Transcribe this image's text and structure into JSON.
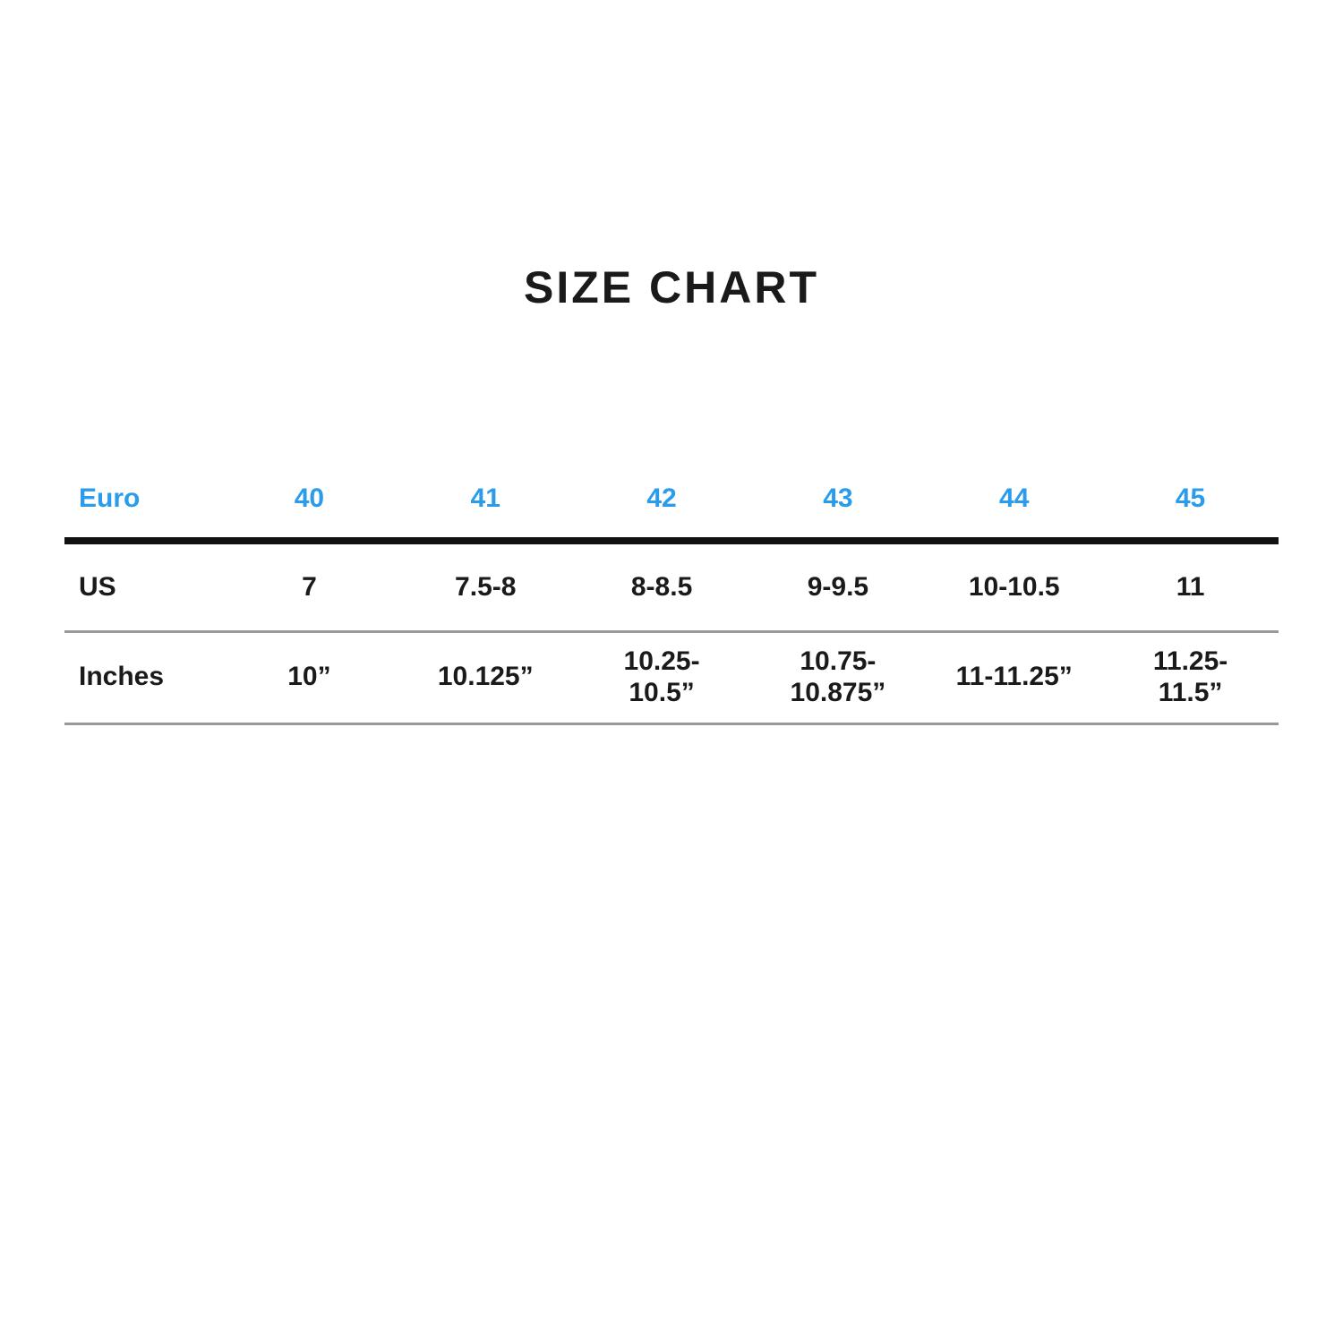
{
  "title": "SIZE CHART",
  "colors": {
    "accent_blue": "#2b9ceb",
    "text": "#1a1a1a",
    "thick_divider": "#111111",
    "thin_divider": "#999999",
    "background": "#ffffff"
  },
  "table": {
    "euro_row": {
      "label": "Euro",
      "values": [
        "40",
        "41",
        "42",
        "43",
        "44",
        "45"
      ]
    },
    "us_row": {
      "label": "US",
      "values": [
        "7",
        "7.5-8",
        "8-8.5",
        "9-9.5",
        "10-10.5",
        "11"
      ]
    },
    "inches_row": {
      "label": "Inches",
      "values": [
        "10”",
        "10.125”",
        "10.25-\n10.5”",
        "10.75-\n10.875”",
        "11-11.25”",
        "11.25-\n11.5”"
      ]
    }
  },
  "chart_data": {
    "type": "table",
    "title": "SIZE CHART",
    "columns": [
      "Euro",
      "40",
      "41",
      "42",
      "43",
      "44",
      "45"
    ],
    "rows": [
      [
        "US",
        "7",
        "7.5-8",
        "8-8.5",
        "9-9.5",
        "10-10.5",
        "11"
      ],
      [
        "Inches",
        "10”",
        "10.125”",
        "10.25-10.5”",
        "10.75-10.875”",
        "11-11.25”",
        "11.25-11.5”"
      ]
    ]
  }
}
